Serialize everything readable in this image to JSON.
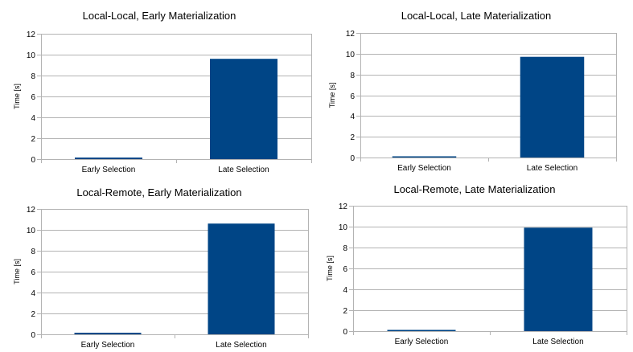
{
  "chart_data": [
    {
      "type": "bar",
      "title": "Local-Local, Early Materialization",
      "ylabel": "Time [s]",
      "xlabel": "",
      "ylim": [
        0,
        12
      ],
      "yticks": [
        0,
        2,
        4,
        6,
        8,
        10,
        12
      ],
      "categories": [
        "Early Selection",
        "Late Selection"
      ],
      "values": [
        0.15,
        9.6
      ],
      "color": "#004586",
      "grid": true,
      "legend": "none"
    },
    {
      "type": "bar",
      "title": "Local-Local, Late Materialization",
      "ylabel": "Time [s]",
      "xlabel": "",
      "ylim": [
        0,
        12
      ],
      "yticks": [
        0,
        2,
        4,
        6,
        8,
        10,
        12
      ],
      "categories": [
        "Early Selection",
        "Late Selection"
      ],
      "values": [
        0.1,
        9.7
      ],
      "color": "#004586",
      "grid": true,
      "legend": "none"
    },
    {
      "type": "bar",
      "title": "Local-Remote, Early Materialization",
      "ylabel": "Time [s]",
      "xlabel": "",
      "ylim": [
        0,
        12
      ],
      "yticks": [
        0,
        2,
        4,
        6,
        8,
        10,
        12
      ],
      "categories": [
        "Early Selection",
        "Late Selection"
      ],
      "values": [
        0.15,
        10.6
      ],
      "color": "#004586",
      "grid": true,
      "legend": "none"
    },
    {
      "type": "bar",
      "title": "Local-Remote, Late Materialization",
      "ylabel": "Time [s]",
      "xlabel": "",
      "ylim": [
        0,
        12
      ],
      "yticks": [
        0,
        2,
        4,
        6,
        8,
        10,
        12
      ],
      "categories": [
        "Early Selection",
        "Late Selection"
      ],
      "values": [
        0.1,
        9.9
      ],
      "color": "#004586",
      "grid": true,
      "legend": "none"
    }
  ]
}
